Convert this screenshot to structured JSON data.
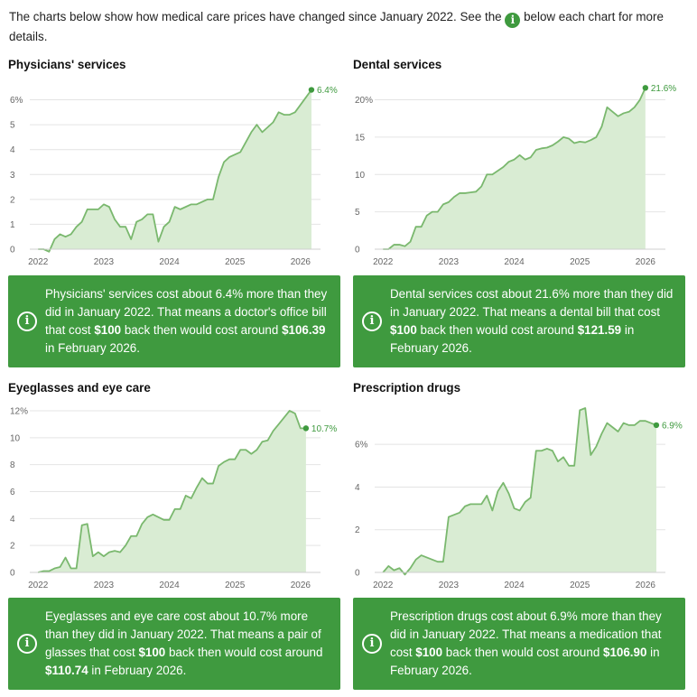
{
  "intro": {
    "before": "The charts below show how medical care prices have changed since January 2022. See the",
    "icon_glyph": "i",
    "after": "below each chart for more details."
  },
  "colors": {
    "accent": "#3f9a3f",
    "area_fill": "#d9ecd3",
    "line": "#7ab86e",
    "grid": "#e4e4e4"
  },
  "chart_data": [
    {
      "type": "area",
      "title": "Physicians' services",
      "xlabel": "",
      "ylabel": "",
      "x_start": 2022.0,
      "x_step_months": 1,
      "xlim": [
        2021.9,
        2026.25
      ],
      "ylim": [
        0,
        6.6
      ],
      "y_ticks": [
        0,
        1,
        2,
        3,
        4,
        5,
        6
      ],
      "y_tick_labels": [
        "0",
        "1",
        "2",
        "3",
        "4",
        "5",
        "6%"
      ],
      "x_ticks": [
        2022,
        2023,
        2024,
        2025,
        2026
      ],
      "x_tick_labels": [
        "2022",
        "2023",
        "2024",
        "2025",
        "2026"
      ],
      "end_label": "6.4%",
      "values": [
        0,
        0,
        -0.1,
        0.4,
        0.6,
        0.5,
        0.6,
        0.9,
        1.1,
        1.6,
        1.6,
        1.6,
        1.8,
        1.7,
        1.2,
        0.9,
        0.9,
        0.4,
        1.1,
        1.2,
        1.4,
        1.4,
        0.3,
        0.9,
        1.1,
        1.7,
        1.6,
        1.7,
        1.8,
        1.8,
        1.9,
        2.0,
        2.0,
        2.9,
        3.5,
        3.7,
        3.8,
        3.9,
        4.3,
        4.7,
        5.0,
        4.7,
        4.9,
        5.1,
        5.5,
        5.4,
        5.4,
        5.5,
        5.8,
        6.1,
        6.4
      ]
    },
    {
      "type": "area",
      "title": "Dental services",
      "xlabel": "",
      "ylabel": "",
      "x_start": 2022.0,
      "x_step_months": 1,
      "xlim": [
        2021.9,
        2026.25
      ],
      "ylim": [
        0,
        22
      ],
      "y_ticks": [
        0,
        5,
        10,
        15,
        20
      ],
      "y_tick_labels": [
        "0",
        "5",
        "10",
        "15",
        "20%"
      ],
      "x_ticks": [
        2022,
        2023,
        2024,
        2025,
        2026
      ],
      "x_tick_labels": [
        "2022",
        "2023",
        "2024",
        "2025",
        "2026"
      ],
      "end_label": "21.6%",
      "values": [
        0,
        0,
        0.6,
        0.6,
        0.4,
        1.0,
        3.0,
        3.0,
        4.5,
        5.0,
        5.0,
        6.0,
        6.3,
        7.0,
        7.5,
        7.5,
        7.6,
        7.7,
        8.4,
        10.0,
        10.0,
        10.5,
        11.0,
        11.7,
        12.0,
        12.6,
        12.0,
        12.3,
        13.3,
        13.5,
        13.6,
        13.9,
        14.4,
        15.0,
        14.8,
        14.2,
        14.4,
        14.3,
        14.6,
        15.0,
        16.4,
        19.0,
        18.4,
        17.8,
        18.2,
        18.4,
        19.0,
        20.0,
        21.6
      ]
    },
    {
      "type": "area",
      "title": "Eyeglasses and eye care",
      "xlabel": "",
      "ylabel": "",
      "x_start": 2022.0,
      "x_step_months": 1,
      "xlim": [
        2021.9,
        2026.25
      ],
      "ylim": [
        0,
        12.2
      ],
      "y_ticks": [
        0,
        2,
        4,
        6,
        8,
        10,
        12
      ],
      "y_tick_labels": [
        "0",
        "2",
        "4",
        "6",
        "8",
        "10",
        "12%"
      ],
      "x_ticks": [
        2022,
        2023,
        2024,
        2025,
        2026
      ],
      "x_tick_labels": [
        "2022",
        "2023",
        "2024",
        "2025",
        "2026"
      ],
      "end_label": "10.7%",
      "values": [
        0,
        0.1,
        0.1,
        0.3,
        0.4,
        1.1,
        0.3,
        0.3,
        3.5,
        3.6,
        1.2,
        1.5,
        1.2,
        1.5,
        1.6,
        1.5,
        2.0,
        2.7,
        2.7,
        3.6,
        4.1,
        4.3,
        4.1,
        3.9,
        3.9,
        4.7,
        4.7,
        5.7,
        5.5,
        6.3,
        7.0,
        6.6,
        6.6,
        7.9,
        8.2,
        8.4,
        8.4,
        9.1,
        9.1,
        8.8,
        9.1,
        9.7,
        9.8,
        10.5,
        11.0,
        11.5,
        12.0,
        11.8,
        10.7,
        10.7
      ]
    },
    {
      "type": "area",
      "title": "Prescription drugs",
      "xlabel": "",
      "ylabel": "",
      "x_start": 2022.0,
      "x_step_months": 1,
      "xlim": [
        2021.9,
        2026.25
      ],
      "ylim": [
        0,
        7.7
      ],
      "y_ticks": [
        0,
        2,
        4,
        6
      ],
      "y_tick_labels": [
        "0",
        "2",
        "4",
        "6%"
      ],
      "x_ticks": [
        2022,
        2023,
        2024,
        2025,
        2026
      ],
      "x_tick_labels": [
        "2022",
        "2023",
        "2024",
        "2025",
        "2026"
      ],
      "end_label": "6.9%",
      "values": [
        0,
        0.3,
        0.1,
        0.2,
        -0.1,
        0.2,
        0.6,
        0.8,
        0.7,
        0.6,
        0.5,
        0.5,
        2.6,
        2.7,
        2.8,
        3.1,
        3.2,
        3.2,
        3.2,
        3.6,
        2.9,
        3.8,
        4.2,
        3.7,
        3.0,
        2.9,
        3.3,
        3.5,
        5.7,
        5.7,
        5.8,
        5.7,
        5.2,
        5.4,
        5.0,
        5.0,
        7.6,
        7.7,
        5.5,
        5.9,
        6.5,
        7.0,
        6.8,
        6.6,
        7.0,
        6.9,
        6.9,
        7.1,
        7.1,
        7.0,
        6.9
      ]
    }
  ],
  "callouts": [
    {
      "icon_glyph": "i",
      "t1": "Physicians' services cost about 6.4% more than they did in January 2022. That means a doctor's office bill that cost ",
      "b1": "$100",
      "t2": " back then would cost around ",
      "b2": "$106.39",
      "t3": " in February 2026."
    },
    {
      "icon_glyph": "i",
      "t1": "Dental services cost about 21.6% more than they did in January 2022. That means a dental bill that cost ",
      "b1": "$100",
      "t2": " back then would cost around ",
      "b2": "$121.59",
      "t3": " in February 2026."
    },
    {
      "icon_glyph": "i",
      "t1": "Eyeglasses and eye care cost about 10.7% more than they did in January 2022. That means a pair of glasses that cost ",
      "b1": "$100",
      "t2": " back then would cost around ",
      "b2": "$110.74",
      "t3": " in February 2026."
    },
    {
      "icon_glyph": "i",
      "t1": "Prescription drugs cost about 6.9% more than they did in January 2022. That means a medication that cost ",
      "b1": "$100",
      "t2": " back then would cost around ",
      "b2": "$106.90",
      "t3": " in February 2026."
    }
  ]
}
